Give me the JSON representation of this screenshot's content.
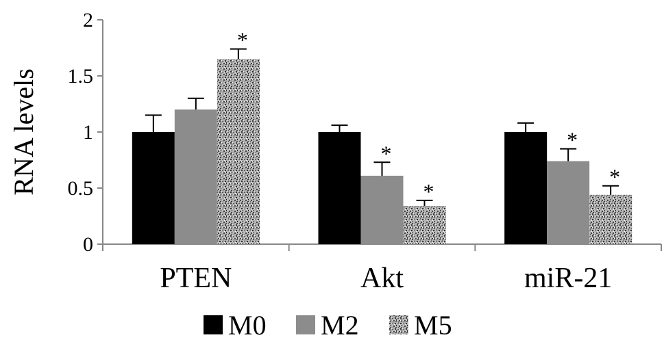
{
  "chart_data": {
    "type": "bar",
    "ylabel": "RNA levels",
    "xlabel": "",
    "ylim": [
      0,
      2
    ],
    "yticks": [
      "0",
      "0.5",
      "1",
      "1.5",
      "2"
    ],
    "grid": false,
    "legend_position": "bottom",
    "categories": [
      "PTEN",
      "Akt",
      "miR-21"
    ],
    "series": [
      {
        "name": "M0",
        "color": "#000000",
        "pattern": "solid",
        "values": [
          1.0,
          1.0,
          1.0
        ],
        "errors": [
          0.15,
          0.06,
          0.08
        ],
        "significant": [
          false,
          false,
          false
        ]
      },
      {
        "name": "M2",
        "color": "#8c8c8c",
        "pattern": "solid",
        "values": [
          1.2,
          0.61,
          0.74
        ],
        "errors": [
          0.1,
          0.12,
          0.11
        ],
        "significant": [
          false,
          true,
          true
        ]
      },
      {
        "name": "M5",
        "color": "#9a9a9a",
        "pattern": "speckled",
        "values": [
          1.65,
          0.34,
          0.44
        ],
        "errors": [
          0.09,
          0.05,
          0.08
        ],
        "significant": [
          true,
          true,
          true
        ]
      }
    ],
    "annotation_mark": "*"
  }
}
